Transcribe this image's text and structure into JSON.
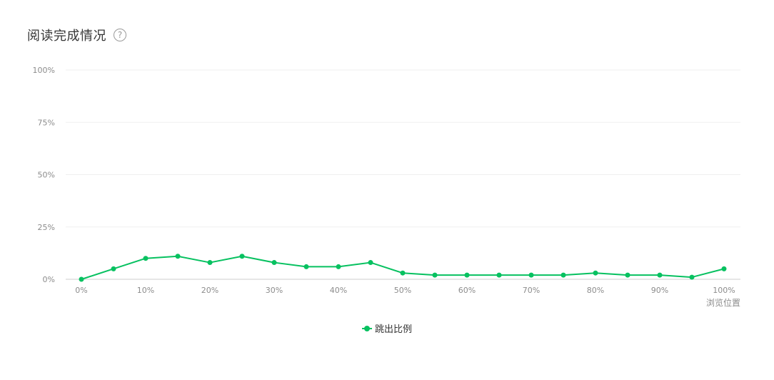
{
  "header": {
    "title": "阅读完成情况",
    "help_icon": "?"
  },
  "colors": {
    "series": "#07c160",
    "grid": "#efefef",
    "axis": "#cccccc",
    "tick_text": "#8c8c8c",
    "title": "#353535"
  },
  "chart_data": {
    "type": "line",
    "title": "阅读完成情况",
    "xlabel": "浏览位置",
    "ylabel": "",
    "x": [
      "0%",
      "5%",
      "10%",
      "15%",
      "20%",
      "25%",
      "30%",
      "35%",
      "40%",
      "45%",
      "50%",
      "55%",
      "60%",
      "65%",
      "70%",
      "75%",
      "80%",
      "85%",
      "90%",
      "95%",
      "100%"
    ],
    "x_tick_labels": [
      "0%",
      "10%",
      "20%",
      "30%",
      "40%",
      "50%",
      "60%",
      "70%",
      "80%",
      "90%",
      "100%"
    ],
    "y_tick_labels": [
      "100%",
      "75%",
      "50%",
      "25%",
      "0%"
    ],
    "ylim": [
      0,
      100
    ],
    "grid": true,
    "legend_position": "bottom-center",
    "series": [
      {
        "name": "跳出比例",
        "color": "#07c160",
        "values": [
          0,
          5,
          10,
          11,
          8,
          11,
          8,
          6,
          6,
          8,
          3,
          2,
          2,
          2,
          2,
          2,
          3,
          2,
          2,
          1,
          5
        ]
      }
    ]
  }
}
